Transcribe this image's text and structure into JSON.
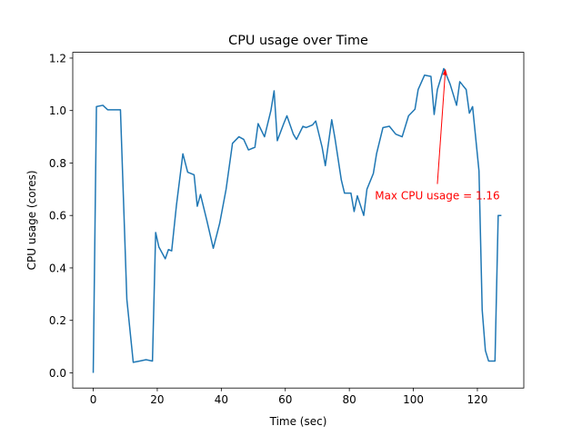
{
  "chart_data": {
    "type": "line",
    "title": "CPU usage over Time",
    "xlabel": "Time (sec)",
    "ylabel": "CPU usage (cores)",
    "xlim": [
      -6.4,
      134.5
    ],
    "ylim": [
      -0.058,
      1.222
    ],
    "xticks": [
      0,
      20,
      40,
      60,
      80,
      100,
      120
    ],
    "xtick_labels": [
      "0",
      "20",
      "40",
      "60",
      "80",
      "100",
      "120"
    ],
    "yticks": [
      0.0,
      0.2,
      0.4,
      0.6,
      0.8,
      1.0,
      1.2
    ],
    "ytick_labels": [
      "0.0",
      "0.2",
      "0.4",
      "0.6",
      "0.8",
      "1.0",
      "1.2"
    ],
    "grid": false,
    "series": [
      {
        "color": "#1f77b4",
        "x": [
          0,
          1,
          3,
          4.5,
          6,
          8.5,
          10.5,
          12.5,
          14.5,
          16.5,
          18.5,
          19.5,
          20.5,
          22.5,
          23.5,
          24.5,
          26,
          28,
          29.5,
          31.5,
          32.5,
          33.5,
          35.5,
          37.5,
          39.5,
          41.5,
          43.5,
          45.5,
          47,
          48.5,
          50.5,
          51.5,
          53.5,
          55.5,
          56.5,
          57.5,
          59.5,
          60.5,
          62.5,
          63.5,
          65.5,
          66.5,
          68.5,
          69.5,
          71.5,
          72.5,
          74.5,
          75.5,
          77.5,
          78.5,
          80.5,
          81.5,
          82.5,
          84.5,
          85.5,
          87.5,
          88.5,
          90.5,
          92.5,
          94.5,
          96.5,
          98.5,
          100.5,
          101.5,
          103.5,
          105.5,
          106.5,
          107.5,
          109.5,
          111.5,
          113.5,
          114.5,
          116.5,
          117.5,
          118.5,
          120.5,
          121.5,
          122.5,
          123.5,
          124.5,
          125.5,
          126.5,
          127.5
        ],
        "y": [
          0.0,
          1.015,
          1.02,
          1.003,
          1.003,
          1.003,
          0.28,
          0.04,
          0.045,
          0.05,
          0.045,
          0.535,
          0.48,
          0.435,
          0.47,
          0.465,
          0.64,
          0.835,
          0.765,
          0.755,
          0.635,
          0.68,
          0.58,
          0.475,
          0.57,
          0.7,
          0.875,
          0.9,
          0.89,
          0.85,
          0.86,
          0.95,
          0.9,
          1.0,
          1.075,
          0.885,
          0.95,
          0.98,
          0.91,
          0.89,
          0.94,
          0.935,
          0.945,
          0.96,
          0.86,
          0.79,
          0.965,
          0.895,
          0.735,
          0.685,
          0.685,
          0.615,
          0.675,
          0.6,
          0.7,
          0.76,
          0.835,
          0.935,
          0.94,
          0.91,
          0.9,
          0.98,
          1.005,
          1.08,
          1.135,
          1.13,
          0.985,
          1.08,
          1.16,
          1.1,
          1.02,
          1.11,
          1.08,
          0.99,
          1.015,
          0.77,
          0.24,
          0.085,
          0.045,
          0.045,
          0.045,
          0.6,
          0.6
        ]
      }
    ],
    "annotations": [
      {
        "text": "Max CPU usage = 1.16",
        "x": 110,
        "y": 1.16,
        "text_x": 107.5,
        "text_y": 0.72,
        "color": "#ff0000"
      }
    ]
  }
}
